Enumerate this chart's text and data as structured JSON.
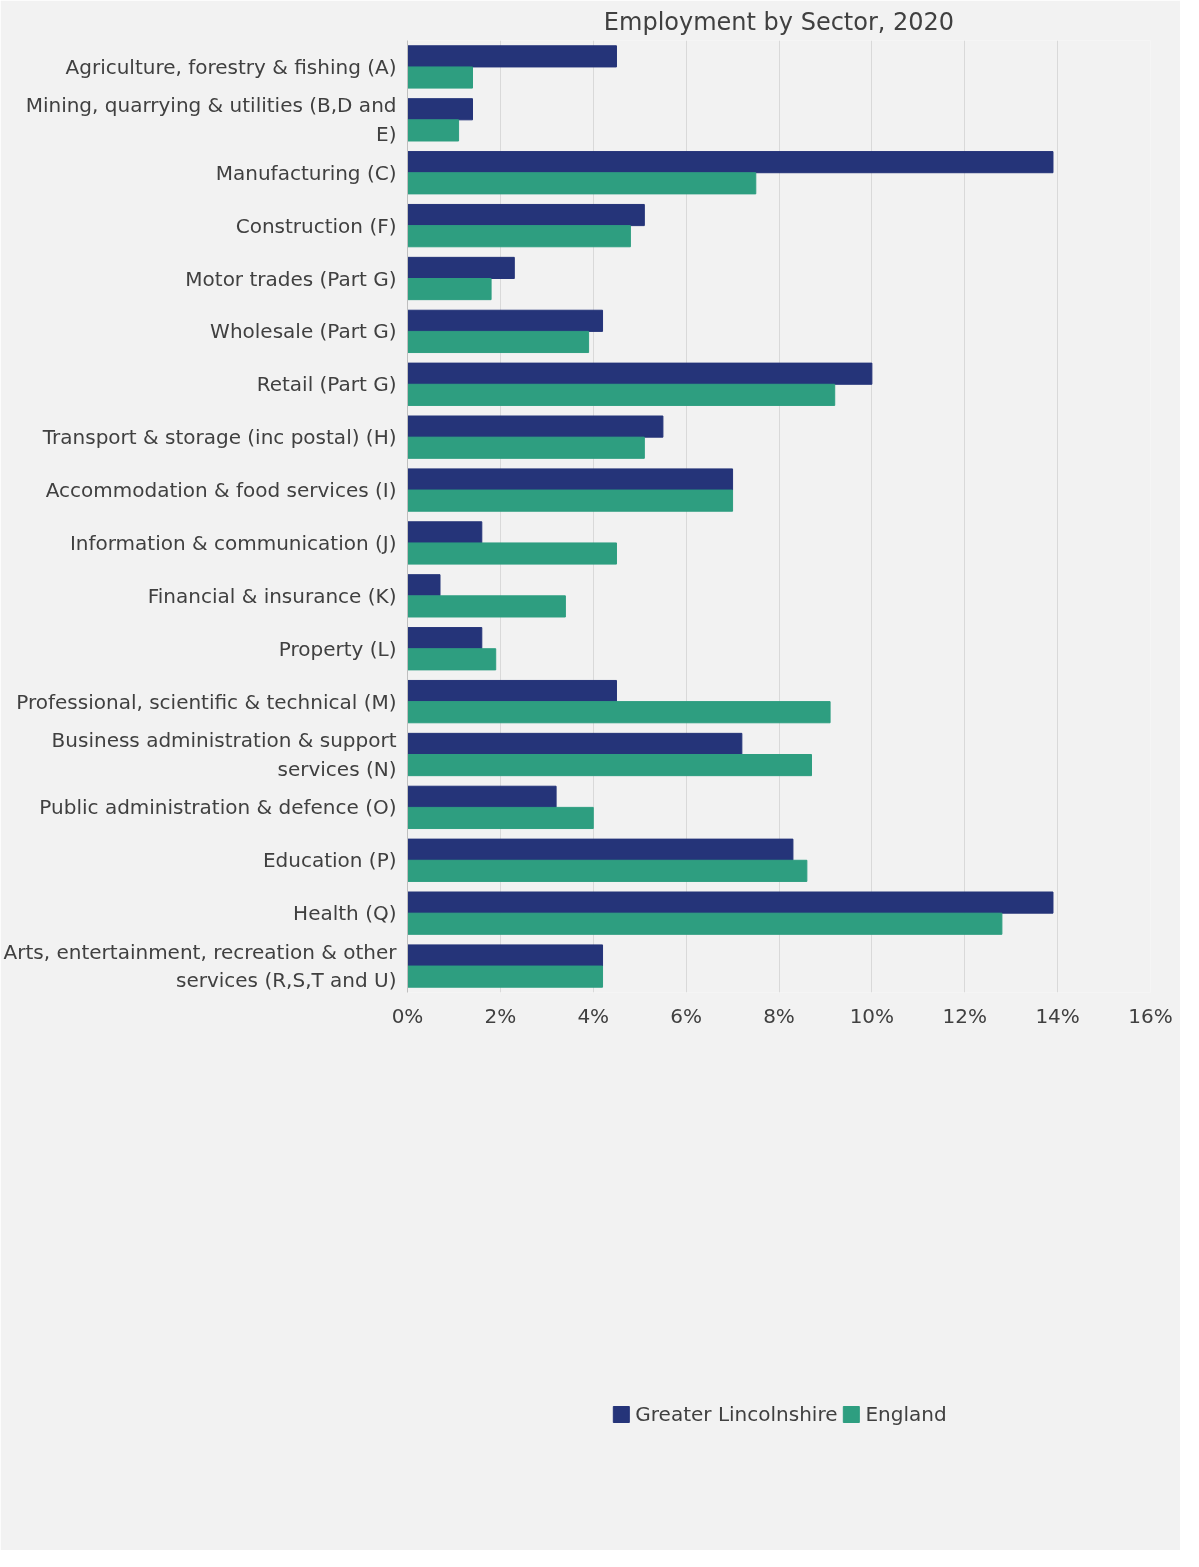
{
  "chart_data": {
    "type": "bar",
    "orientation": "horizontal",
    "title": "Employment by Sector, 2020",
    "categories": [
      "Agriculture, forestry & fishing (A)",
      "Mining, quarrying & utilities (B,D and E)",
      "Manufacturing (C)",
      "Construction (F)",
      "Motor trades (Part G)",
      "Wholesale (Part G)",
      "Retail (Part G)",
      "Transport & storage (inc postal) (H)",
      "Accommodation & food services (I)",
      "Information & communication (J)",
      "Financial & insurance (K)",
      "Property (L)",
      "Professional, scientific & technical (M)",
      "Business administration & support services (N)",
      "Public administration & defence (O)",
      "Education (P)",
      "Health (Q)",
      "Arts, entertainment, recreation & other services (R,S,T and U)"
    ],
    "series": [
      {
        "name": "Greater Lincolnshire",
        "color": "#253479",
        "values": [
          4.5,
          1.4,
          13.9,
          5.1,
          2.3,
          4.2,
          10.0,
          5.5,
          7.0,
          1.6,
          0.7,
          1.6,
          4.5,
          7.2,
          3.2,
          8.3,
          13.9,
          4.2
        ]
      },
      {
        "name": "England",
        "color": "#2e9e80",
        "values": [
          1.4,
          1.1,
          7.5,
          4.8,
          1.8,
          3.9,
          9.2,
          5.1,
          7.0,
          4.5,
          3.4,
          1.9,
          9.1,
          8.7,
          4.0,
          8.6,
          12.8,
          4.2
        ]
      }
    ],
    "xlim": [
      0,
      16
    ],
    "xticks": [
      {
        "value": 0,
        "label": "0%"
      },
      {
        "value": 2,
        "label": "2%"
      },
      {
        "value": 4,
        "label": "4%"
      },
      {
        "value": 6,
        "label": "6%"
      },
      {
        "value": 8,
        "label": "8%"
      },
      {
        "value": 10,
        "label": "10%"
      },
      {
        "value": 12,
        "label": "12%"
      },
      {
        "value": 14,
        "label": "14%"
      },
      {
        "value": 16,
        "label": "16%"
      }
    ],
    "grid": "x",
    "legend": "bottom"
  }
}
